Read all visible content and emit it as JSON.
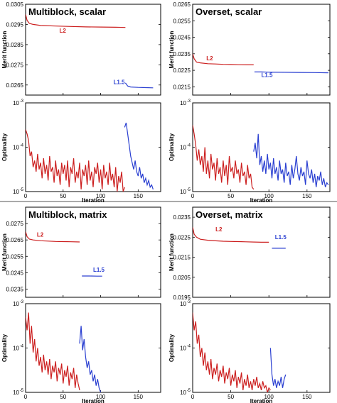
{
  "chart_data": [
    {
      "type": "line",
      "title": "Multiblock, scalar",
      "ylabel": "Merit function",
      "xlim": [
        0,
        180
      ],
      "ylim": [
        0.026,
        0.0305
      ],
      "yticks": [
        "0.0305",
        "0.0295",
        "0.0285",
        "0.0275",
        "0.0265"
      ],
      "ytick_values": [
        0.0305,
        0.0295,
        0.0285,
        0.0275,
        0.0265
      ],
      "xticks": [],
      "series": [
        {
          "name": "L2",
          "color": "#cc1f1f",
          "label_at": [
            45,
            0.0291
          ],
          "x": [
            0,
            2,
            5,
            10,
            20,
            40,
            60,
            80,
            100,
            120,
            133
          ],
          "y": [
            0.03,
            0.0297,
            0.02955,
            0.0295,
            0.02945,
            0.02942,
            0.0294,
            0.02938,
            0.02937,
            0.02936,
            0.02935
          ]
        },
        {
          "name": "L1.5",
          "color": "#2a3fd1",
          "label_at": [
            117,
            0.02655
          ],
          "x": [
            133,
            136,
            140,
            150,
            160,
            170
          ],
          "y": [
            0.0266,
            0.02645,
            0.0264,
            0.02638,
            0.02637,
            0.02636
          ]
        }
      ]
    },
    {
      "type": "line",
      "title": "",
      "ylabel": "Optimality",
      "xlabel": "Iteration",
      "log": true,
      "xlim": [
        0,
        180
      ],
      "ylim": [
        -5,
        -3
      ],
      "yticks": [
        "10",
        "10",
        "10"
      ],
      "ytick_exps": [
        "-3",
        "-4",
        "-5"
      ],
      "ytick_values": [
        -3,
        -4,
        -5
      ],
      "xticks": [
        "0",
        "50",
        "100",
        "150"
      ],
      "xtick_values": [
        0,
        50,
        100,
        150
      ],
      "series": [
        {
          "name": "",
          "color": "#cc1f1f",
          "x": [
            0,
            2,
            4,
            6,
            8,
            10,
            12,
            14,
            16,
            18,
            20,
            22,
            24,
            26,
            28,
            30,
            32,
            34,
            36,
            38,
            40,
            42,
            44,
            46,
            48,
            50,
            52,
            54,
            56,
            58,
            60,
            62,
            64,
            66,
            68,
            70,
            72,
            74,
            76,
            78,
            80,
            82,
            84,
            86,
            88,
            90,
            92,
            94,
            96,
            98,
            100,
            102,
            104,
            106,
            108,
            110,
            112,
            114,
            116,
            118,
            120,
            122,
            124,
            126,
            128,
            130,
            132
          ],
          "y": [
            -3.6,
            -3.7,
            -3.85,
            -4.2,
            -4.1,
            -4.45,
            -4.3,
            -4.55,
            -4.15,
            -4.5,
            -4.35,
            -4.7,
            -4.25,
            -4.6,
            -4.4,
            -4.75,
            -4.2,
            -4.55,
            -4.45,
            -4.8,
            -4.3,
            -4.65,
            -4.5,
            -4.85,
            -4.35,
            -4.6,
            -4.4,
            -4.75,
            -4.3,
            -4.9,
            -4.45,
            -4.6,
            -4.25,
            -4.8,
            -4.55,
            -4.7,
            -4.35,
            -4.95,
            -4.5,
            -4.65,
            -4.4,
            -4.85,
            -4.3,
            -4.75,
            -4.55,
            -4.9,
            -4.45,
            -4.6,
            -4.35,
            -4.8,
            -4.5,
            -4.95,
            -4.4,
            -4.7,
            -4.55,
            -4.85,
            -4.35,
            -4.75,
            -4.6,
            -4.9,
            -4.45,
            -5.0,
            -4.65,
            -4.8,
            -4.55,
            -5.0,
            -4.9
          ]
        },
        {
          "name": "",
          "color": "#2a3fd1",
          "x": [
            132,
            134,
            136,
            138,
            140,
            142,
            144,
            146,
            148,
            150,
            152,
            154,
            156,
            158,
            160,
            162,
            164,
            166,
            168,
            170
          ],
          "y": [
            -3.55,
            -3.45,
            -3.7,
            -3.95,
            -4.2,
            -4.35,
            -4.5,
            -4.3,
            -4.55,
            -4.65,
            -4.45,
            -4.7,
            -4.6,
            -4.8,
            -4.7,
            -4.85,
            -4.75,
            -4.9,
            -4.85,
            -4.95
          ]
        }
      ]
    },
    {
      "type": "line",
      "title": "Overset, scalar",
      "ylabel": "Merit function",
      "xlim": [
        0,
        180
      ],
      "ylim": [
        0.021,
        0.0265
      ],
      "yticks": [
        "0.0265",
        "0.0255",
        "0.0245",
        "0.0235",
        "0.0225",
        "0.0215"
      ],
      "ytick_values": [
        0.0265,
        0.0255,
        0.0245,
        0.0235,
        0.0225,
        0.0215
      ],
      "xticks": [],
      "series": [
        {
          "name": "L2",
          "color": "#cc1f1f",
          "label_at": [
            18,
            0.0231
          ],
          "x": [
            0,
            2,
            5,
            10,
            20,
            30,
            40,
            50,
            60,
            70,
            80
          ],
          "y": [
            0.0235,
            0.0232,
            0.023,
            0.02295,
            0.0229,
            0.02288,
            0.02286,
            0.02285,
            0.02284,
            0.02283,
            0.02283
          ]
        },
        {
          "name": "L1.5",
          "color": "#2a3fd1",
          "label_at": [
            90,
            0.0221
          ],
          "x": [
            81,
            90,
            100,
            120,
            140,
            160,
            178
          ],
          "y": [
            0.0224,
            0.0224,
            0.02239,
            0.02238,
            0.02237,
            0.02236,
            0.02235
          ]
        }
      ]
    },
    {
      "type": "line",
      "title": "",
      "ylabel": "Optimality",
      "xlabel": "Iteration",
      "log": true,
      "xlim": [
        0,
        180
      ],
      "ylim": [
        -5,
        -3
      ],
      "yticks": [
        "10",
        "10",
        "10"
      ],
      "ytick_exps": [
        "-3",
        "-4",
        "-5"
      ],
      "ytick_values": [
        -3,
        -4,
        -5
      ],
      "xticks": [
        "0",
        "50",
        "100",
        "150"
      ],
      "xtick_values": [
        0,
        50,
        100,
        150
      ],
      "series": [
        {
          "name": "",
          "color": "#cc1f1f",
          "x": [
            0,
            2,
            4,
            6,
            8,
            10,
            12,
            14,
            16,
            18,
            20,
            22,
            24,
            26,
            28,
            30,
            32,
            34,
            36,
            38,
            40,
            42,
            44,
            46,
            48,
            50,
            52,
            54,
            56,
            58,
            60,
            62,
            64,
            66,
            68,
            70,
            72,
            74,
            76,
            78,
            80
          ],
          "y": [
            -3.5,
            -3.7,
            -3.95,
            -4.3,
            -4.05,
            -4.4,
            -4.2,
            -4.55,
            -4.0,
            -4.6,
            -4.3,
            -4.7,
            -4.15,
            -4.5,
            -4.35,
            -4.75,
            -4.25,
            -4.6,
            -4.45,
            -4.8,
            -4.3,
            -4.65,
            -4.4,
            -4.85,
            -4.2,
            -4.55,
            -4.45,
            -4.7,
            -4.3,
            -4.6,
            -4.5,
            -4.8,
            -4.35,
            -4.65,
            -4.55,
            -4.85,
            -4.4,
            -4.7,
            -4.6,
            -4.9,
            -4.95
          ]
        },
        {
          "name": "",
          "color": "#2a3fd1",
          "x": [
            80,
            82,
            84,
            86,
            88,
            90,
            92,
            94,
            96,
            98,
            100,
            102,
            104,
            106,
            108,
            110,
            112,
            114,
            116,
            118,
            120,
            122,
            124,
            126,
            128,
            130,
            132,
            134,
            136,
            138,
            140,
            142,
            144,
            146,
            148,
            150,
            152,
            154,
            156,
            158,
            160,
            162,
            164,
            166,
            168,
            170,
            172,
            174,
            176,
            178
          ],
          "y": [
            -4.1,
            -3.9,
            -4.25,
            -3.7,
            -4.4,
            -4.2,
            -4.55,
            -4.3,
            -4.6,
            -4.15,
            -4.5,
            -4.35,
            -4.7,
            -4.25,
            -4.6,
            -4.45,
            -4.75,
            -4.3,
            -4.6,
            -4.5,
            -4.8,
            -4.35,
            -4.65,
            -4.55,
            -4.85,
            -4.4,
            -4.7,
            -4.5,
            -4.2,
            -4.6,
            -4.75,
            -4.45,
            -4.65,
            -4.55,
            -4.85,
            -4.3,
            -4.6,
            -4.7,
            -4.5,
            -4.8,
            -4.6,
            -4.9,
            -4.65,
            -4.75,
            -4.55,
            -4.85,
            -4.7,
            -4.9,
            -4.8,
            -4.85
          ]
        }
      ]
    },
    {
      "type": "line",
      "title": "Multiblock, matrix",
      "ylabel": "Merit function",
      "xlim": [
        0,
        180
      ],
      "ylim": [
        0.023,
        0.0285
      ],
      "yticks": [
        "0.0275",
        "0.0265",
        "0.0255",
        "0.0245",
        "0.0235"
      ],
      "ytick_values": [
        0.0275,
        0.0265,
        0.0255,
        0.0245,
        0.0235
      ],
      "xticks": [],
      "series": [
        {
          "name": "L2",
          "color": "#cc1f1f",
          "label_at": [
            15,
            0.0267
          ],
          "x": [
            0,
            2,
            5,
            10,
            20,
            30,
            40,
            50,
            60,
            72
          ],
          "y": [
            0.027,
            0.0267,
            0.02655,
            0.0265,
            0.02645,
            0.02643,
            0.02641,
            0.0264,
            0.02639,
            0.02638
          ]
        },
        {
          "name": "L1.5",
          "color": "#2a3fd1",
          "label_at": [
            90,
            0.02455
          ],
          "x": [
            75,
            85,
            95,
            102
          ],
          "y": [
            0.0243,
            0.0243,
            0.02429,
            0.02429
          ]
        }
      ]
    },
    {
      "type": "line",
      "title": "",
      "ylabel": "Optimality",
      "xlabel": "Iteration",
      "log": true,
      "xlim": [
        0,
        180
      ],
      "ylim": [
        -5,
        -3
      ],
      "yticks": [
        "10",
        "10",
        "10"
      ],
      "ytick_exps": [
        "-3",
        "-4",
        "-5"
      ],
      "ytick_values": [
        -3,
        -4,
        -5
      ],
      "xticks": [
        "0",
        "50",
        "100",
        "150"
      ],
      "xtick_values": [
        0,
        50,
        100,
        150
      ],
      "series": [
        {
          "name": "",
          "color": "#cc1f1f",
          "x": [
            0,
            2,
            4,
            6,
            8,
            10,
            12,
            14,
            16,
            18,
            20,
            22,
            24,
            26,
            28,
            30,
            32,
            34,
            36,
            38,
            40,
            42,
            44,
            46,
            48,
            50,
            52,
            54,
            56,
            58,
            60,
            62,
            64,
            66,
            68,
            70,
            72
          ],
          "y": [
            -3.3,
            -3.6,
            -3.2,
            -3.9,
            -3.5,
            -4.1,
            -3.8,
            -4.3,
            -4.0,
            -4.4,
            -4.2,
            -4.55,
            -4.15,
            -4.5,
            -4.3,
            -4.6,
            -4.25,
            -4.7,
            -4.4,
            -4.55,
            -4.3,
            -4.75,
            -4.45,
            -4.6,
            -4.35,
            -4.8,
            -4.5,
            -4.65,
            -4.4,
            -4.85,
            -4.55,
            -4.7,
            -4.45,
            -4.9,
            -4.6,
            -4.8,
            -4.95
          ]
        },
        {
          "name": "",
          "color": "#2a3fd1",
          "x": [
            72,
            74,
            76,
            78,
            80,
            82,
            84,
            86,
            88,
            90,
            92,
            94,
            96,
            98,
            100
          ],
          "y": [
            -3.9,
            -3.5,
            -4.05,
            -3.8,
            -4.2,
            -4.45,
            -4.3,
            -4.6,
            -4.5,
            -4.75,
            -4.6,
            -4.85,
            -4.7,
            -4.9,
            -5.0
          ]
        }
      ]
    },
    {
      "type": "line",
      "title": "Overset, matrix",
      "ylabel": "Merit function",
      "xlim": [
        0,
        180
      ],
      "ylim": [
        0.0195,
        0.024
      ],
      "yticks": [
        "0.0235",
        "0.0225",
        "0.0215",
        "0.0205",
        "0.0195"
      ],
      "ytick_values": [
        0.0235,
        0.0225,
        0.0215,
        0.0205,
        0.0195
      ],
      "xticks": [],
      "series": [
        {
          "name": "L2",
          "color": "#cc1f1f",
          "label_at": [
            30,
            0.0228
          ],
          "x": [
            0,
            2,
            5,
            10,
            20,
            30,
            40,
            50,
            60,
            70,
            80,
            90,
            100
          ],
          "y": [
            0.023,
            0.02265,
            0.0225,
            0.0224,
            0.02235,
            0.02232,
            0.0223,
            0.02229,
            0.02228,
            0.02227,
            0.02226,
            0.02225,
            0.02225
          ]
        },
        {
          "name": "L1.5",
          "color": "#2a3fd1",
          "label_at": [
            108,
            0.0224
          ],
          "x": [
            104,
            110,
            118,
            122
          ],
          "y": [
            0.02195,
            0.02195,
            0.02195,
            0.02195
          ]
        }
      ]
    },
    {
      "type": "line",
      "title": "",
      "ylabel": "Optimality",
      "xlabel": "Iteration",
      "log": true,
      "xlim": [
        0,
        180
      ],
      "ylim": [
        -5,
        -3
      ],
      "yticks": [
        "10",
        "10",
        "10"
      ],
      "ytick_exps": [
        "-3",
        "-4",
        "-5"
      ],
      "ytick_values": [
        -3,
        -4,
        -5
      ],
      "xticks": [
        "0",
        "50",
        "100",
        "150"
      ],
      "xtick_values": [
        0,
        50,
        100,
        150
      ],
      "series": [
        {
          "name": "",
          "color": "#cc1f1f",
          "x": [
            0,
            2,
            4,
            6,
            8,
            10,
            12,
            14,
            16,
            18,
            20,
            22,
            24,
            26,
            28,
            30,
            32,
            34,
            36,
            38,
            40,
            42,
            44,
            46,
            48,
            50,
            52,
            54,
            56,
            58,
            60,
            62,
            64,
            66,
            68,
            70,
            72,
            74,
            76,
            78,
            80,
            82,
            84,
            86,
            88,
            90,
            92,
            94,
            96,
            98,
            100,
            102
          ],
          "y": [
            -3.2,
            -3.6,
            -3.4,
            -3.9,
            -3.7,
            -4.2,
            -4.0,
            -4.4,
            -4.1,
            -4.5,
            -4.3,
            -4.6,
            -4.25,
            -4.7,
            -4.45,
            -4.6,
            -4.35,
            -4.75,
            -4.5,
            -4.65,
            -4.4,
            -4.8,
            -4.55,
            -4.7,
            -4.45,
            -4.85,
            -4.6,
            -4.75,
            -4.5,
            -4.9,
            -4.65,
            -4.8,
            -4.55,
            -4.95,
            -4.7,
            -4.85,
            -4.6,
            -4.9,
            -4.75,
            -4.95,
            -4.7,
            -4.85,
            -4.65,
            -4.9,
            -4.8,
            -4.95,
            -4.75,
            -4.9,
            -4.85,
            -5.0,
            -4.9,
            -4.95
          ]
        },
        {
          "name": "",
          "color": "#2a3fd1",
          "x": [
            102,
            104,
            106,
            108,
            110,
            112,
            114,
            116,
            118,
            120,
            122
          ],
          "y": [
            -4.0,
            -4.6,
            -4.85,
            -4.7,
            -4.9,
            -4.75,
            -4.85,
            -4.65,
            -4.9,
            -4.7,
            -4.6
          ]
        }
      ]
    }
  ]
}
